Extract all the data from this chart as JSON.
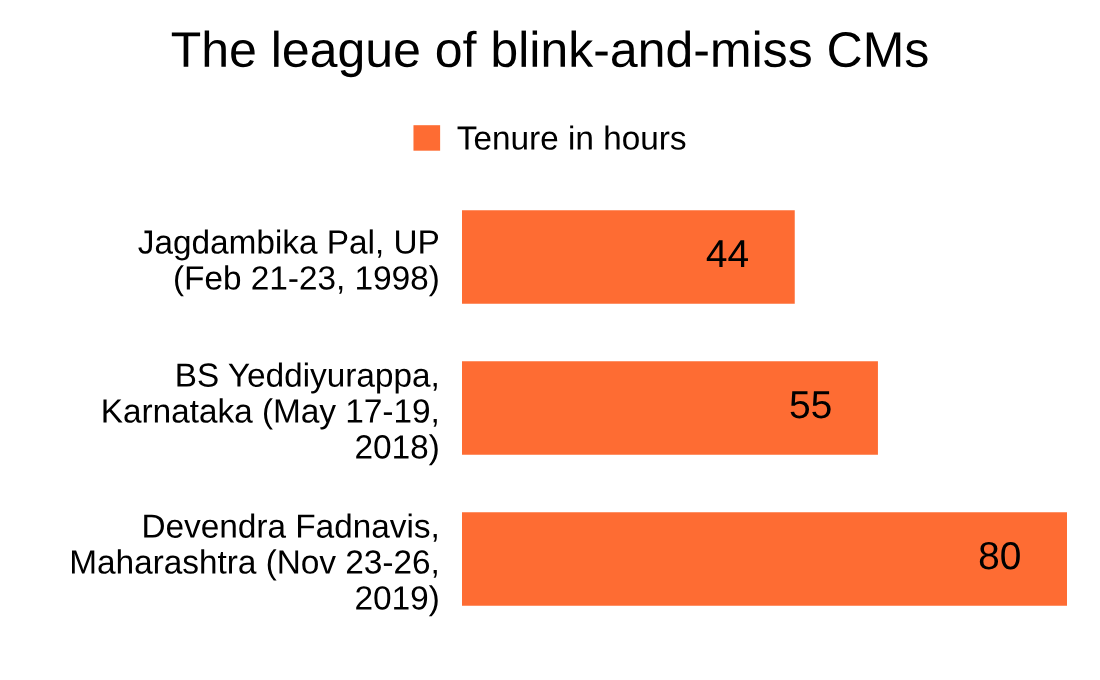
{
  "chart_data": {
    "type": "bar",
    "orientation": "horizontal",
    "title": "The league of blink-and-miss CMs",
    "categories": [
      "Jagdambika Pal, UP\n(Feb 21-23, 1998)",
      "BS Yeddiyurappa,\nKarnataka (May 17-19,\n2018)",
      "Devendra Fadnavis,\nMaharashtra (Nov 23-26,\n2019)"
    ],
    "series": [
      {
        "name": "Tenure in hours",
        "color": "#fe6c33",
        "values": [
          44,
          55,
          80
        ]
      }
    ],
    "data_labels": true,
    "legend": "top",
    "grid": false
  }
}
